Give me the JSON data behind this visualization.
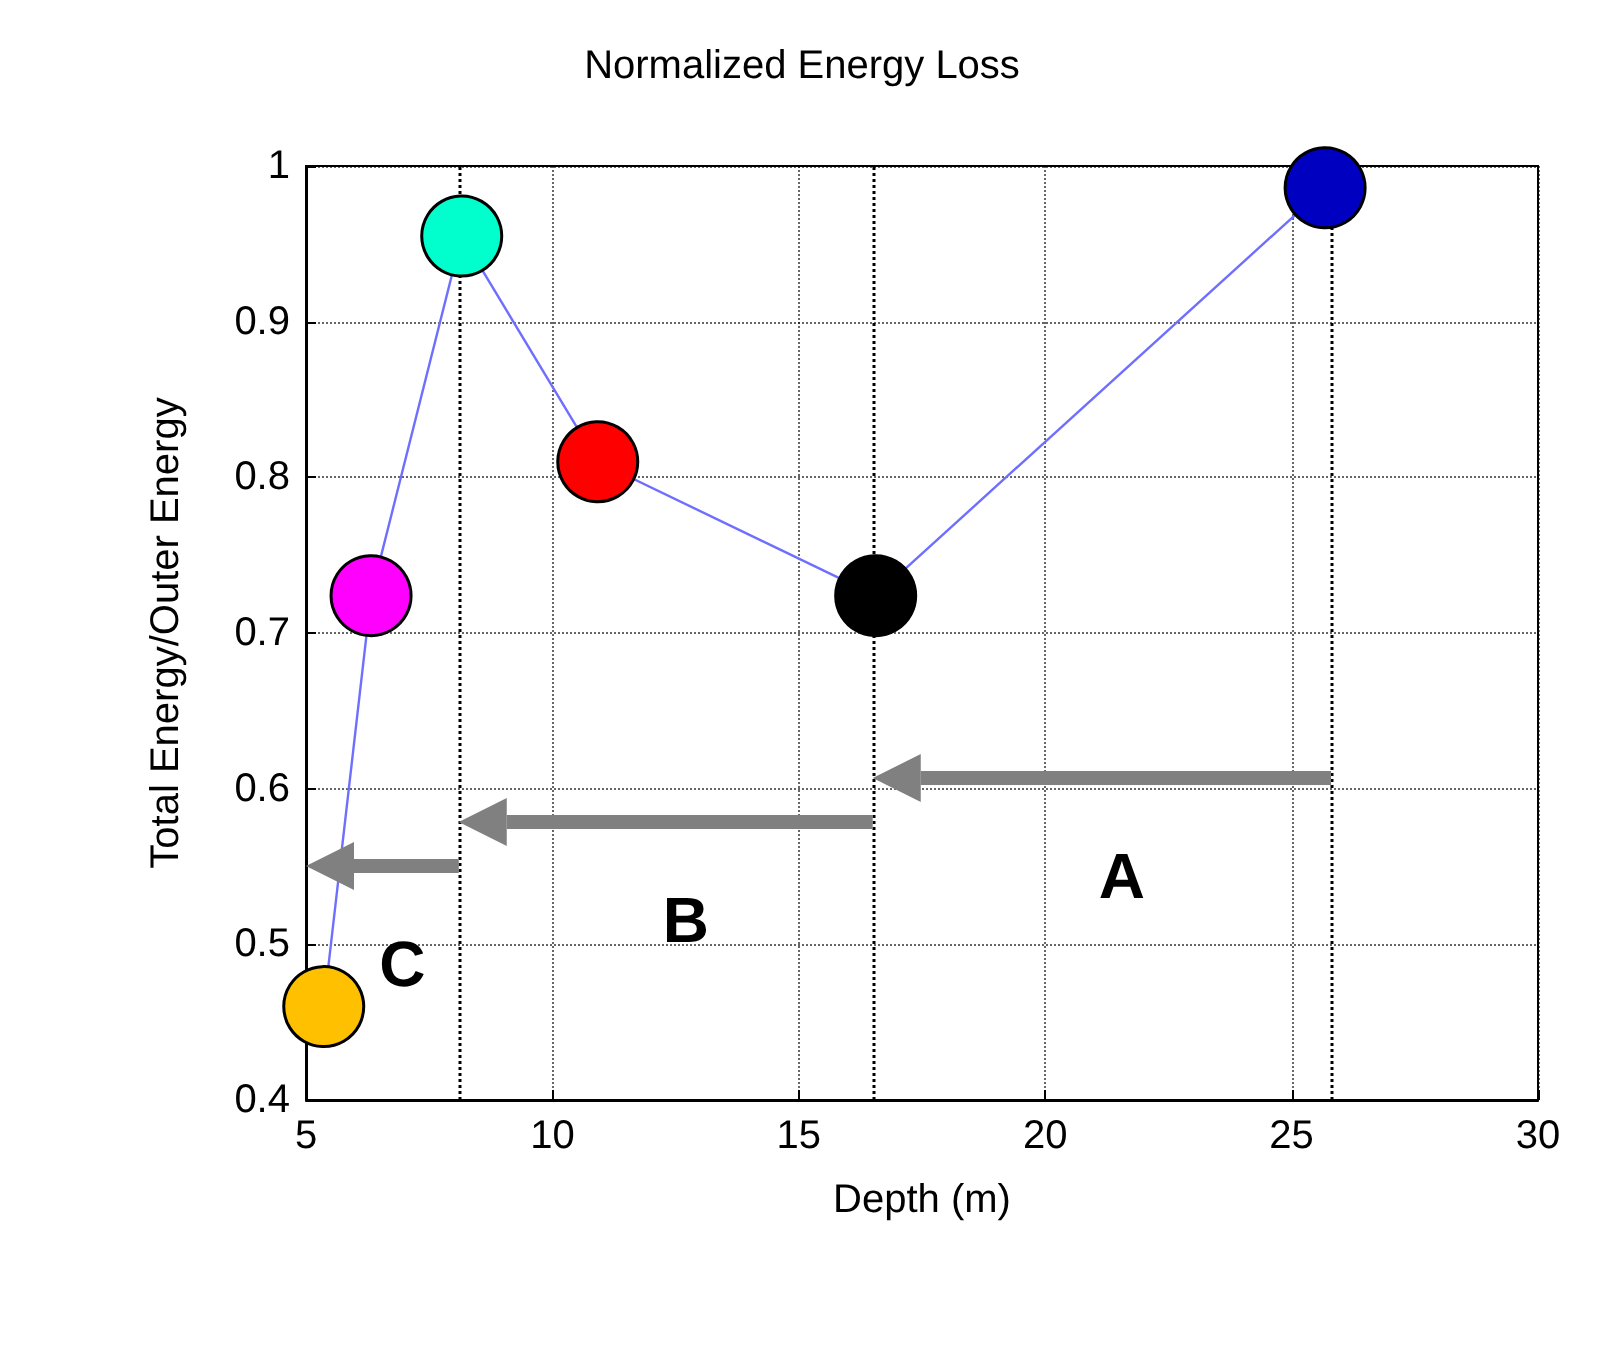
{
  "chart_data": {
    "type": "line",
    "title": "Normalized Energy Loss",
    "xlabel": "Depth (m)",
    "ylabel": "Total Energy/Outer Energy",
    "x": [
      5.36,
      6.32,
      8.16,
      10.92,
      16.56,
      25.68
    ],
    "series": [
      {
        "color": "#6f6fff",
        "colors": [
          "#ffc000",
          "#ff00ff",
          "#00ffcc",
          "#ff0000",
          "#000000",
          "#0000c0"
        ],
        "values": [
          0.46,
          0.724,
          0.955,
          0.81,
          0.724,
          0.986
        ]
      }
    ],
    "xlim": [
      5,
      30
    ],
    "xticks": [
      5,
      10,
      15,
      20,
      25,
      30
    ],
    "ylim": [
      0.4,
      1
    ],
    "yticks": [
      0.4,
      0.5,
      0.6,
      0.7,
      0.8,
      0.9,
      1
    ],
    "grid": true,
    "marker": "circle",
    "ref_lines": [
      {
        "axis": "x",
        "value": 8.1
      },
      {
        "axis": "x",
        "value": 16.5
      },
      {
        "axis": "x",
        "value": 25.8
      }
    ],
    "annotations": [
      "A",
      "B",
      "C"
    ]
  }
}
